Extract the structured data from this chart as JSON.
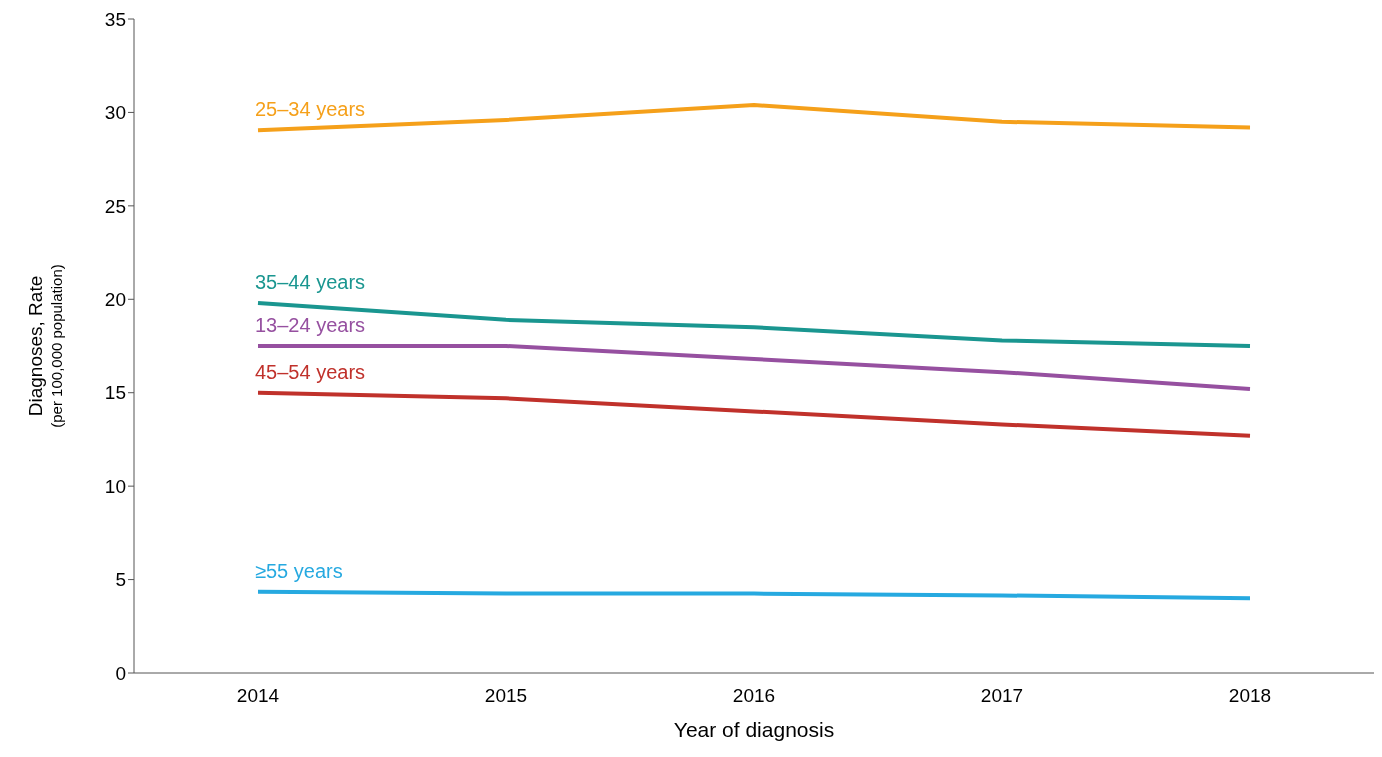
{
  "chart_data": {
    "type": "line",
    "xlabel": "Year of diagnosis",
    "ylabel": "Diagnoses, Rate\n(per 100,000 population)",
    "categories": [
      "2014",
      "2015",
      "2016",
      "2017",
      "2018"
    ],
    "ylim": [
      0,
      35
    ],
    "yticks": [
      0,
      5,
      10,
      15,
      20,
      25,
      30,
      35
    ],
    "grid": false,
    "legend": false,
    "marker": "none",
    "line_style": "solid",
    "series": [
      {
        "name": "25–34 years",
        "color": "#f5a01a",
        "values": [
          29.05,
          29.6,
          30.4,
          29.5,
          29.2
        ]
      },
      {
        "name": "35–44 years",
        "color": "#1a9690",
        "values": [
          19.8,
          18.9,
          18.5,
          17.8,
          17.5
        ]
      },
      {
        "name": "13–24 years",
        "color": "#9650a0",
        "values": [
          17.5,
          17.5,
          16.8,
          16.1,
          15.2
        ]
      },
      {
        "name": "45–54 years",
        "color": "#c0312b",
        "values": [
          15.0,
          14.7,
          14.0,
          13.3,
          12.7
        ]
      },
      {
        "name": "≥55 years",
        "color": "#26a9e0",
        "values": [
          4.35,
          4.25,
          4.25,
          4.15,
          4.0
        ]
      }
    ]
  }
}
